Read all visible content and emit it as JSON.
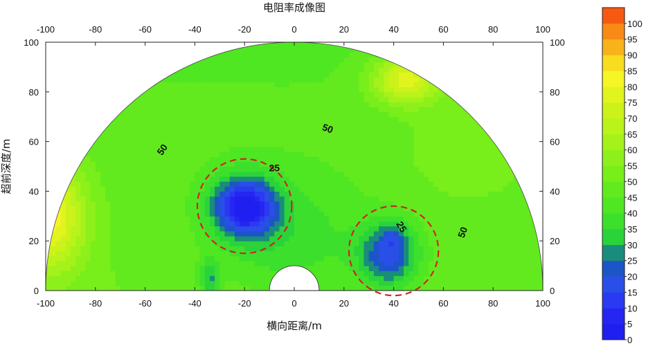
{
  "chart_data": {
    "type": "heatmap",
    "title": "电阻率成像图",
    "xlabel": "横向距离/m",
    "ylabel": "超前深度/m",
    "xlim": [
      -100,
      100
    ],
    "ylim": [
      0,
      100
    ],
    "x_ticks": [
      "-100",
      "-80",
      "-60",
      "-40",
      "-20",
      "0",
      "20",
      "40",
      "60",
      "80",
      "100"
    ],
    "y_ticks": [
      "0",
      "20",
      "40",
      "60",
      "80",
      "100"
    ],
    "contour_labels": [
      "50",
      "50",
      "50",
      "25",
      "25"
    ],
    "colorbar": {
      "min": 0,
      "max": 105,
      "step": 5,
      "labels": [
        "0",
        "5",
        "10",
        "15",
        "20",
        "25",
        "30",
        "35",
        "40",
        "45",
        "50",
        "55",
        "60",
        "65",
        "70",
        "75",
        "80",
        "85",
        "90",
        "95",
        "100"
      ],
      "colors": [
        "#1f1ff0",
        "#2626f2",
        "#2a3af2",
        "#2a4fe8",
        "#1c55c8",
        "#1a8c7c",
        "#2ad33a",
        "#3ce02c",
        "#4fe622",
        "#62ea1e",
        "#78ee1a",
        "#8ef01a",
        "#a4f21a",
        "#b8f41a",
        "#ccf21a",
        "#e2f41e",
        "#f6f626",
        "#f8dc1e",
        "#f8b21a",
        "#f88a16",
        "#f65a10"
      ]
    },
    "anomalies": [
      {
        "label": "25",
        "center": [
          -20,
          34
        ],
        "radius": 19
      },
      {
        "label": "25",
        "center": [
          40,
          16
        ],
        "radius": 18
      }
    ]
  }
}
